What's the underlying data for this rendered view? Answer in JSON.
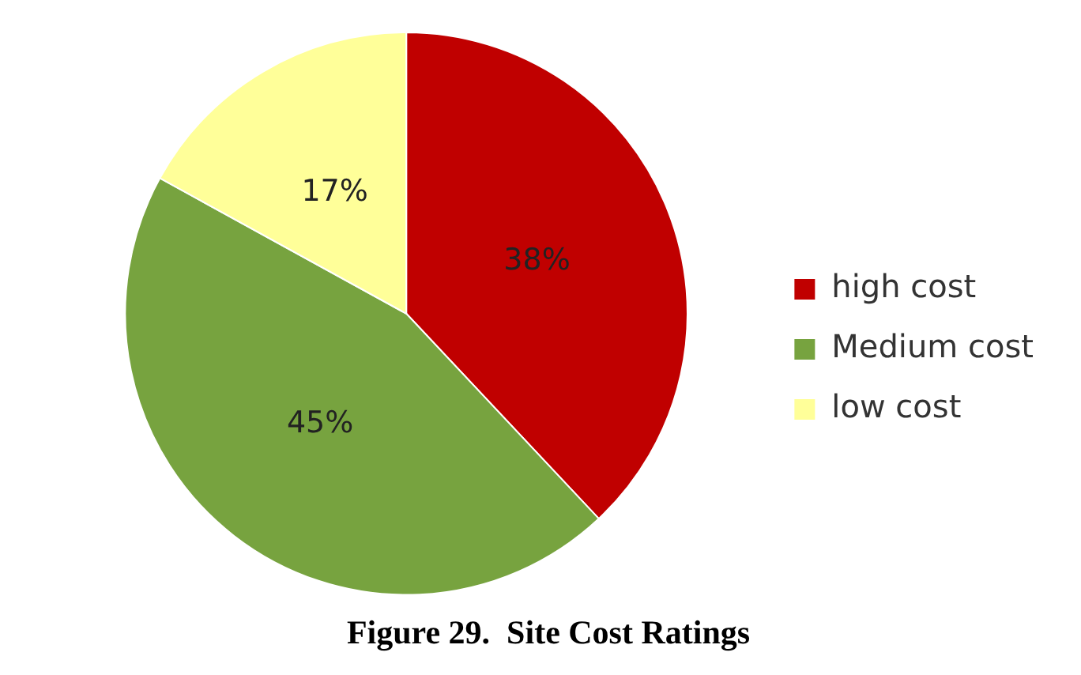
{
  "chart_data": {
    "type": "pie",
    "title": "Figure 29.  Site Cost Ratings",
    "categories": [
      "high cost",
      "Medium cost",
      "low cost"
    ],
    "values": [
      38,
      45,
      17
    ],
    "colors": [
      "#c00000",
      "#77a33f",
      "#ffff99"
    ],
    "value_labels": [
      "38%",
      "45%",
      "17%"
    ],
    "legend": "right"
  }
}
